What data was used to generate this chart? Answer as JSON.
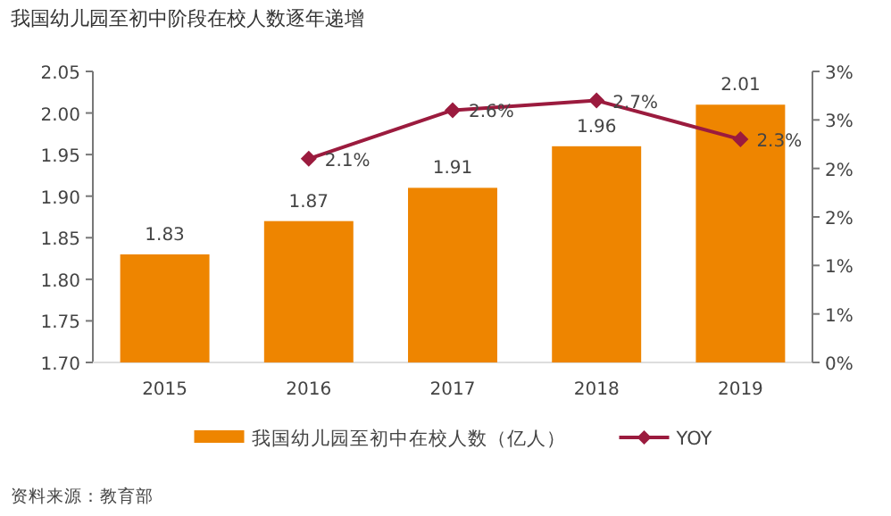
{
  "chart_data": {
    "type": "bar",
    "title": "我国幼儿园至初中阶段在校人数逐年递增",
    "categories": [
      "2015",
      "2016",
      "2017",
      "2018",
      "2019"
    ],
    "series": [
      {
        "name": "我国幼儿园至初中在校人数（亿人）",
        "color": "#ee8500",
        "values": [
          1.83,
          1.87,
          1.91,
          1.96,
          2.01
        ],
        "data_labels": true
      },
      {
        "name": "YOY",
        "type": "line",
        "axis": "y2",
        "color": "#9b1b3e",
        "marker": "diamond",
        "values": [
          null,
          2.1,
          2.6,
          2.7,
          2.3
        ],
        "value_labels": [
          null,
          "2.1%",
          "2.6%",
          "2.7%",
          "2.3%"
        ]
      }
    ],
    "ylim": [
      1.7,
      2.05
    ],
    "yticks": [
      {
        "value": 1.7,
        "label": "1.70"
      },
      {
        "value": 1.75,
        "label": "1.75"
      },
      {
        "value": 1.8,
        "label": "1.80"
      },
      {
        "value": 1.85,
        "label": "1.85"
      },
      {
        "value": 1.9,
        "label": "1.90"
      },
      {
        "value": 1.95,
        "label": "1.95"
      },
      {
        "value": 2.0,
        "label": "2.00"
      },
      {
        "value": 2.05,
        "label": "2.05"
      }
    ],
    "y2lim": [
      0,
      3
    ],
    "y2ticks": [
      {
        "value": 0,
        "label": "0%"
      },
      {
        "value": 0.5,
        "label": "1%"
      },
      {
        "value": 1,
        "label": "1%"
      },
      {
        "value": 1.5,
        "label": "2%"
      },
      {
        "value": 2,
        "label": "2%"
      },
      {
        "value": 2.5,
        "label": "3%"
      },
      {
        "value": 3,
        "label": "3%"
      }
    ],
    "legend": "bottom",
    "grid": false,
    "annotations": [
      "资料来源：教育部"
    ]
  }
}
